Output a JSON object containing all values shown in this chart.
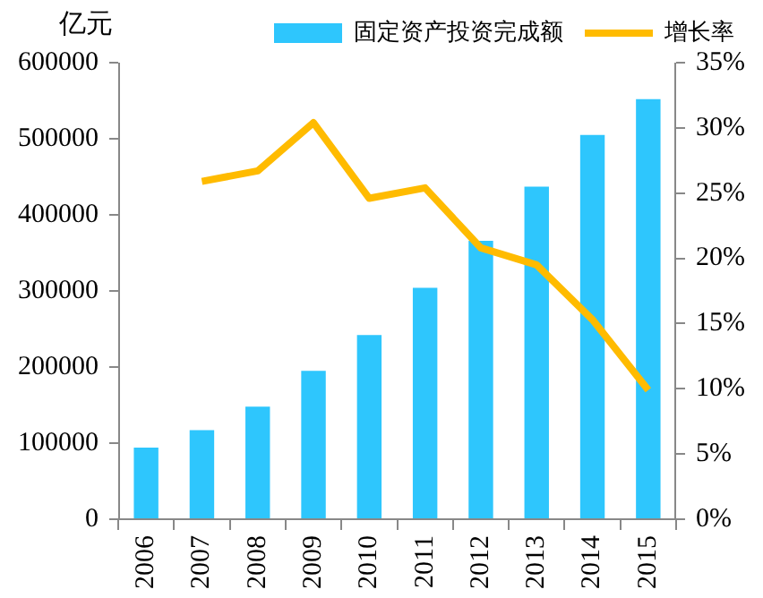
{
  "chart_data": {
    "type": "bar",
    "ylabel": "亿元",
    "categories": [
      "2006",
      "2007",
      "2008",
      "2009",
      "2010",
      "2011",
      "2012",
      "2013",
      "2014",
      "2015"
    ],
    "series": [
      {
        "name": "固定资产投资完成额",
        "color": "#2ec6fd",
        "values": [
          94000,
          117000,
          148000,
          195000,
          242000,
          304000,
          366000,
          437000,
          505000,
          552000
        ]
      },
      {
        "name": "增长率",
        "type": "line",
        "axis": "y2",
        "color": "#ffbb00",
        "values": [
          null,
          25.9,
          26.7,
          30.4,
          24.6,
          25.4,
          20.8,
          19.5,
          15.3,
          9.9
        ]
      }
    ],
    "ylim": [
      0,
      600000
    ],
    "yticks": [
      0,
      100000,
      200000,
      300000,
      400000,
      500000,
      600000
    ],
    "y2lim": [
      0,
      35
    ],
    "y2ticks": [
      {
        "value": 0,
        "label": "0%"
      },
      {
        "value": 5,
        "label": "5%"
      },
      {
        "value": 10,
        "label": "10%"
      },
      {
        "value": 15,
        "label": "15%"
      },
      {
        "value": 20,
        "label": "20%"
      },
      {
        "value": 25,
        "label": "25%"
      },
      {
        "value": 30,
        "label": "30%"
      },
      {
        "value": 35,
        "label": "35%"
      }
    ],
    "grid": false,
    "legend": "top",
    "marker": "none"
  }
}
